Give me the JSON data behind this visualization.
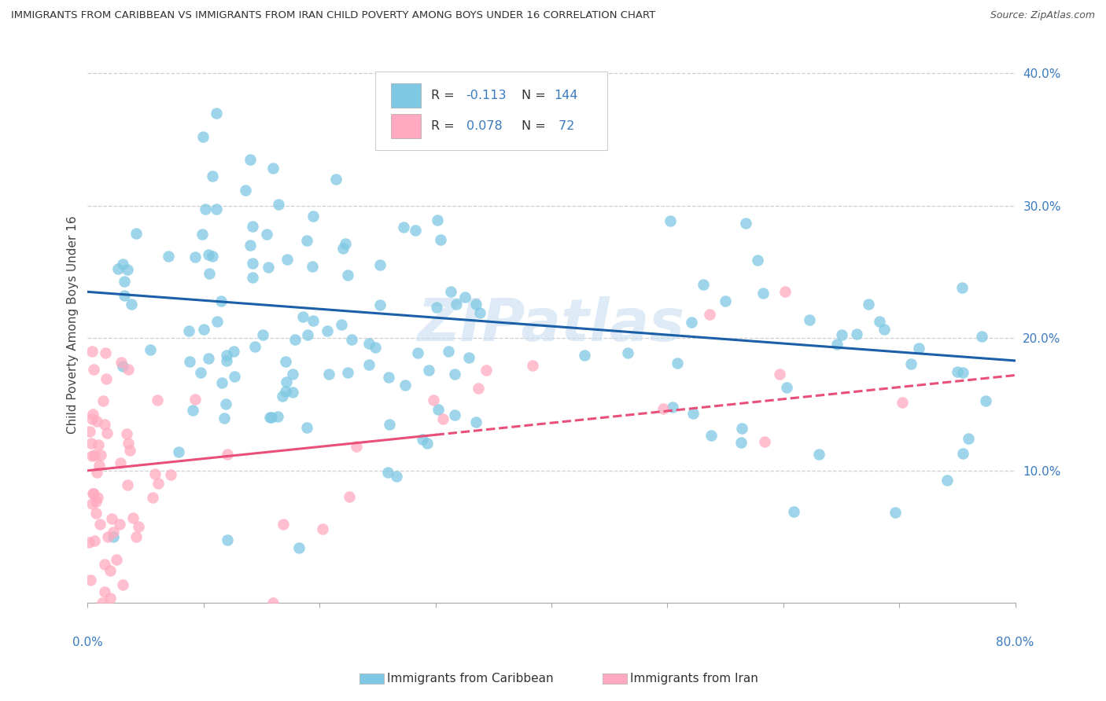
{
  "title": "IMMIGRANTS FROM CARIBBEAN VS IMMIGRANTS FROM IRAN CHILD POVERTY AMONG BOYS UNDER 16 CORRELATION CHART",
  "source": "Source: ZipAtlas.com",
  "ylabel": "Child Poverty Among Boys Under 16",
  "blue_color": "#7ec8e3",
  "pink_color": "#ffaac0",
  "blue_line_color": "#1a5fa8",
  "pink_line_solid_color": "#e8507a",
  "pink_line_dash_color": "#e8507a",
  "ytick_color": "#3a7abf",
  "xlim": [
    0.0,
    0.8
  ],
  "ylim": [
    0.0,
    0.42
  ],
  "watermark": "ZIPatlas"
}
